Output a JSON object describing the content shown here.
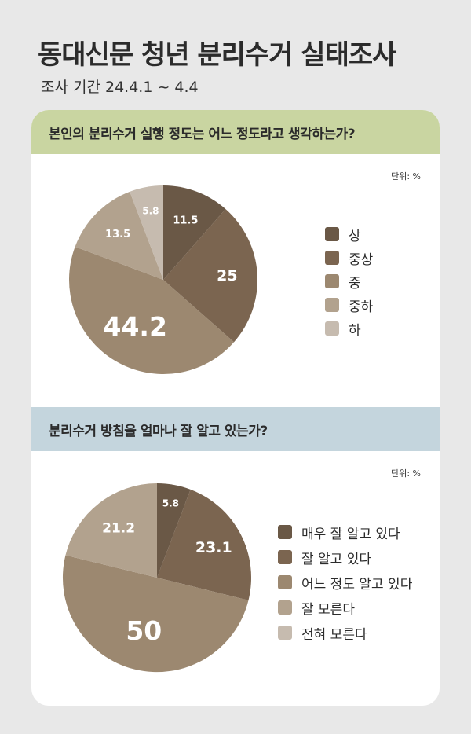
{
  "header": {
    "title": "동대신문 청년 분리수거 실태조사",
    "subtitle": "조사 기간 24.4.1  ~ 4.4"
  },
  "chart_data": [
    {
      "type": "pie",
      "title": "본인의 분리수거 실행 정도는 어느 정도라고 생각하는가?",
      "unit_label": "단위: %",
      "categories": [
        "상",
        "중상",
        "중",
        "중하",
        "하"
      ],
      "values": [
        11.5,
        25,
        44.2,
        13.5,
        5.8
      ],
      "value_labels": [
        "11.5",
        "25",
        "44.2",
        "13.5",
        "5.8"
      ],
      "colors": [
        "#6a5846",
        "#7b6550",
        "#9c8870",
        "#b2a28e",
        "#c6bbaf"
      ],
      "legend_position": "right"
    },
    {
      "type": "pie",
      "title": "분리수거 방침을 얼마나 잘 알고 있는가?",
      "unit_label": "단위: %",
      "categories": [
        "매우 잘 알고 있다",
        "잘 알고 있다",
        "어느 정도 알고 있다",
        "잘 모른다",
        "전혀 모른다"
      ],
      "values": [
        5.8,
        23.1,
        50,
        21.2,
        0
      ],
      "value_labels": [
        "5.8",
        "23.1",
        "50",
        "21.2",
        ""
      ],
      "colors": [
        "#6a5846",
        "#7b6550",
        "#9c8870",
        "#b2a28e",
        "#c6bbaf"
      ],
      "legend_position": "right"
    }
  ]
}
